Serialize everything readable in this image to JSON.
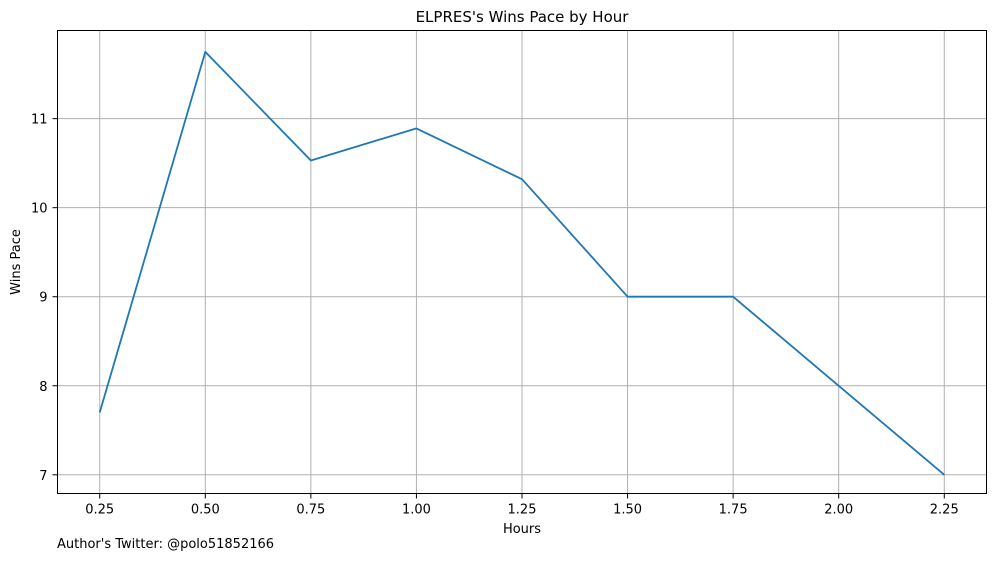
{
  "chart_data": {
    "type": "line",
    "title": "ELPRES's Wins Pace by Hour",
    "xlabel": "Hours",
    "ylabel": "Wins Pace",
    "x": [
      0.25,
      0.5,
      0.75,
      1.0,
      1.25,
      1.5,
      1.75,
      2.0,
      2.25
    ],
    "series": [
      {
        "values": [
          7.7,
          11.75,
          10.53,
          10.89,
          10.32,
          9.0,
          9.0,
          8.0,
          7.0
        ]
      }
    ],
    "x_ticks": [
      "0.25",
      "0.50",
      "0.75",
      "1.00",
      "1.25",
      "1.50",
      "1.75",
      "2.00",
      "2.25"
    ],
    "y_ticks": [
      "7",
      "8",
      "9",
      "10",
      "11"
    ],
    "xlim": [
      0.15,
      2.35
    ],
    "ylim": [
      6.79,
      11.99
    ],
    "grid": true,
    "line_color": "#1f77b4",
    "grid_color": "#b0b0b0"
  },
  "footnote": "Author's Twitter: @polo51852166"
}
